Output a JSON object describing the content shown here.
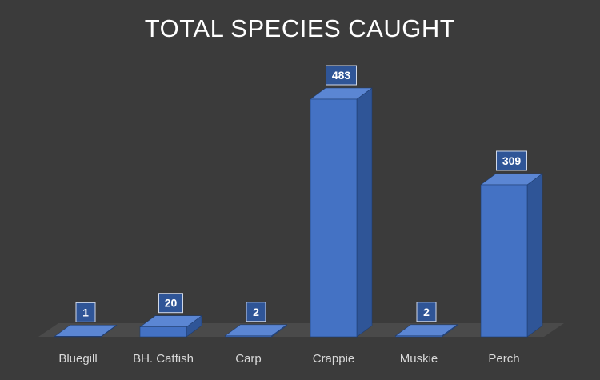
{
  "chart_data": {
    "type": "bar",
    "title": "TOTAL SPECIES CAUGHT",
    "categories": [
      "Bluegill",
      "BH. Catfish",
      "Carp",
      "Crappie",
      "Muskie",
      "Perch"
    ],
    "values": [
      1,
      20,
      2,
      483,
      2,
      309
    ],
    "data_labels": [
      "1",
      "20",
      "2",
      "483",
      "2",
      "309"
    ],
    "xlabel": "",
    "ylabel": "",
    "ylim": [
      0,
      483
    ],
    "grid": false,
    "legend": "none",
    "style": "3d-column",
    "colors": {
      "background": "#3b3b3b",
      "bar_front": "#4472c4",
      "bar_side": "#2f5597",
      "bar_top": "#5b86d3",
      "floor": "#4a4a4a",
      "label_box": "#2f5597"
    }
  }
}
